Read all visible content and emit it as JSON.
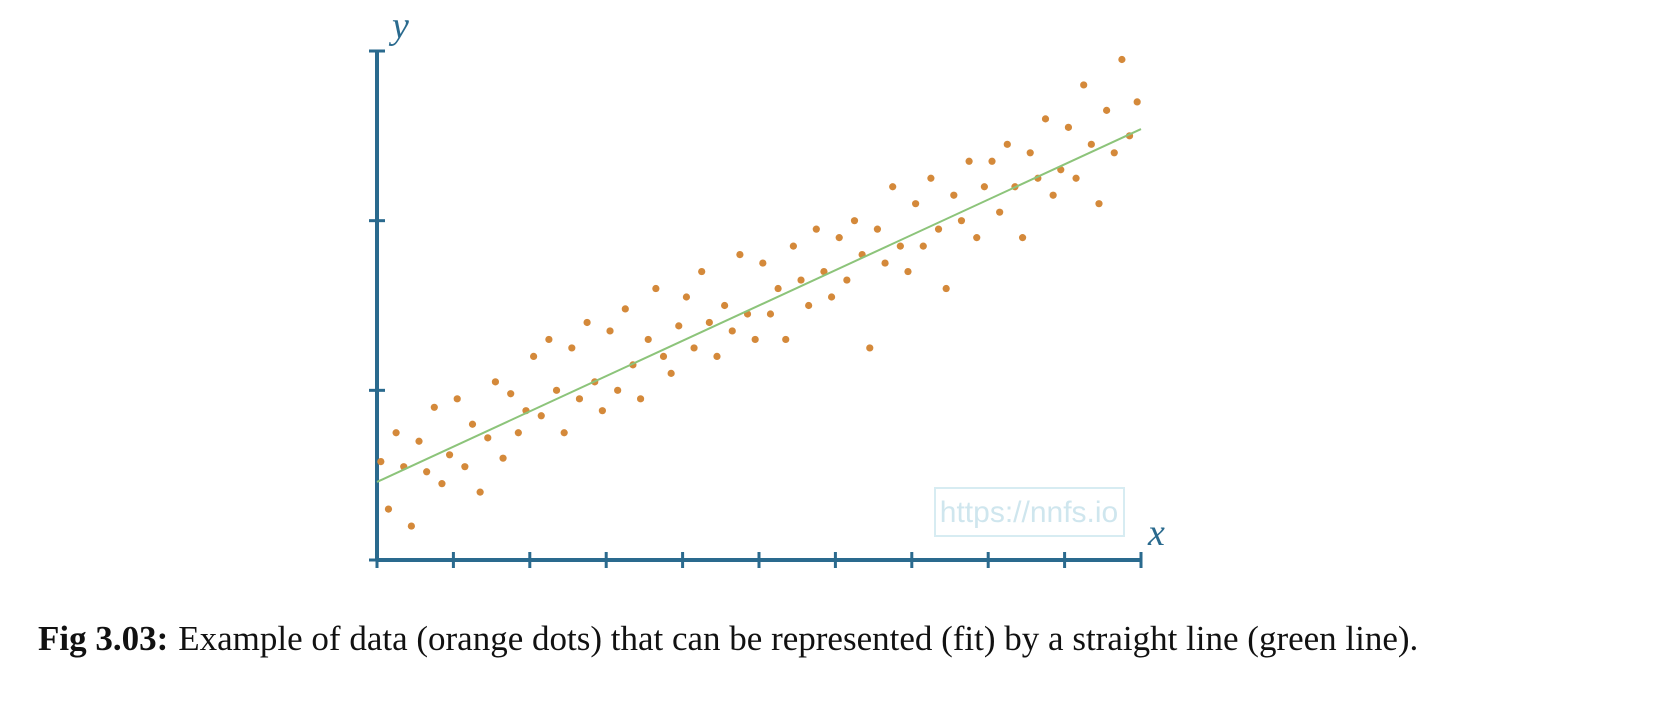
{
  "chart_data": {
    "type": "scatter",
    "xlim": [
      0,
      10
    ],
    "ylim": [
      0,
      3
    ],
    "xticks": [
      0,
      1,
      2,
      3,
      4,
      5,
      6,
      7,
      8,
      9,
      10
    ],
    "yticks": [
      0,
      1,
      2,
      3
    ],
    "x_label": "x",
    "y_label": "y",
    "watermark": "https://nnfs.io",
    "caption_bold": "Fig 3.03:",
    "caption": "Example of data (orange dots) that can be represented (fit) by a straight line (green line).",
    "axis_color": "#2a6a8e",
    "fit_line": {
      "color": "#8cc47a",
      "x": [
        0,
        10
      ],
      "values": [
        0.46,
        2.54
      ]
    },
    "x": [
      0.05,
      0.15,
      0.25,
      0.35,
      0.45,
      0.55,
      0.65,
      0.75,
      0.85,
      0.95,
      1.05,
      1.15,
      1.25,
      1.35,
      1.45,
      1.55,
      1.65,
      1.75,
      1.85,
      1.95,
      2.05,
      2.15,
      2.25,
      2.35,
      2.45,
      2.55,
      2.65,
      2.75,
      2.85,
      2.95,
      3.05,
      3.15,
      3.25,
      3.35,
      3.45,
      3.55,
      3.65,
      3.75,
      3.85,
      3.95,
      4.05,
      4.15,
      4.25,
      4.35,
      4.45,
      4.55,
      4.65,
      4.75,
      4.85,
      4.95,
      5.05,
      5.15,
      5.25,
      5.35,
      5.45,
      5.55,
      5.65,
      5.75,
      5.85,
      5.95,
      6.05,
      6.15,
      6.25,
      6.35,
      6.45,
      6.55,
      6.65,
      6.75,
      6.85,
      6.95,
      7.05,
      7.15,
      7.25,
      7.35,
      7.45,
      7.55,
      7.65,
      7.75,
      7.85,
      7.95,
      8.05,
      8.15,
      8.25,
      8.35,
      8.45,
      8.55,
      8.65,
      8.75,
      8.85,
      8.95,
      9.05,
      9.15,
      9.25,
      9.35,
      9.45,
      9.55,
      9.65,
      9.75,
      9.85,
      9.95
    ],
    "series": [
      {
        "color": "#d4893a",
        "values": [
          0.58,
          0.3,
          0.75,
          0.55,
          0.2,
          0.7,
          0.52,
          0.9,
          0.45,
          0.62,
          0.95,
          0.55,
          0.8,
          0.4,
          0.72,
          1.05,
          0.6,
          0.98,
          0.75,
          0.88,
          1.2,
          0.85,
          1.3,
          1.0,
          0.75,
          1.25,
          0.95,
          1.4,
          1.05,
          0.88,
          1.35,
          1.0,
          1.48,
          1.15,
          0.95,
          1.3,
          1.6,
          1.2,
          1.1,
          1.38,
          1.55,
          1.25,
          1.7,
          1.4,
          1.2,
          1.5,
          1.35,
          1.8,
          1.45,
          1.3,
          1.75,
          1.45,
          1.6,
          1.3,
          1.85,
          1.65,
          1.5,
          1.95,
          1.7,
          1.55,
          1.9,
          1.65,
          2.0,
          1.8,
          1.25,
          1.95,
          1.75,
          2.2,
          1.85,
          1.7,
          2.1,
          1.85,
          2.25,
          1.95,
          1.6,
          2.15,
          2.0,
          2.35,
          1.9,
          2.2,
          2.35,
          2.05,
          2.45,
          2.2,
          1.9,
          2.4,
          2.25,
          2.6,
          2.15,
          2.3,
          2.55,
          2.25,
          2.8,
          2.45,
          2.1,
          2.65,
          2.4,
          2.95,
          2.5,
          2.7
        ]
      }
    ]
  }
}
